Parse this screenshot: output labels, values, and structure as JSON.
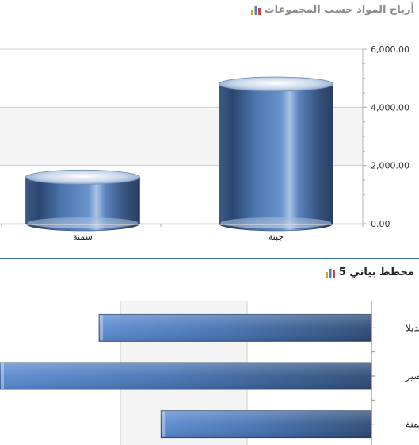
{
  "charts": [
    {
      "title": "أرباح المواد حسب المجموعات",
      "icon": "bar-chart-icon"
    },
    {
      "title": "مخطط بياني 5",
      "icon": "bar-chart-icon"
    }
  ],
  "colors": {
    "bar_dark": "#2f4f7a",
    "bar_light": "#6a93cf",
    "grid": "#d0d0d0",
    "band": "#f4f4f4",
    "axis": "#b0b0b0"
  },
  "chart_data": [
    {
      "type": "bar",
      "style": "cylinder",
      "title": "أرباح المواد حسب المجموعات",
      "categories": [
        "سمنة",
        "جبنة"
      ],
      "values": [
        1600,
        4800
      ],
      "yticks": [
        "0.00",
        "2,000.00",
        "4,000.00",
        "6,000.00"
      ],
      "ylim": [
        0,
        6000
      ],
      "grid": true
    },
    {
      "type": "bar",
      "orientation": "horizontal",
      "title": "مخطط بياني 5",
      "categories": [
        "مرتديلا",
        "عصير",
        "سمنة"
      ],
      "values": [
        2200,
        3000,
        1700
      ],
      "xlim": [
        0,
        3000
      ],
      "grid": true
    }
  ]
}
